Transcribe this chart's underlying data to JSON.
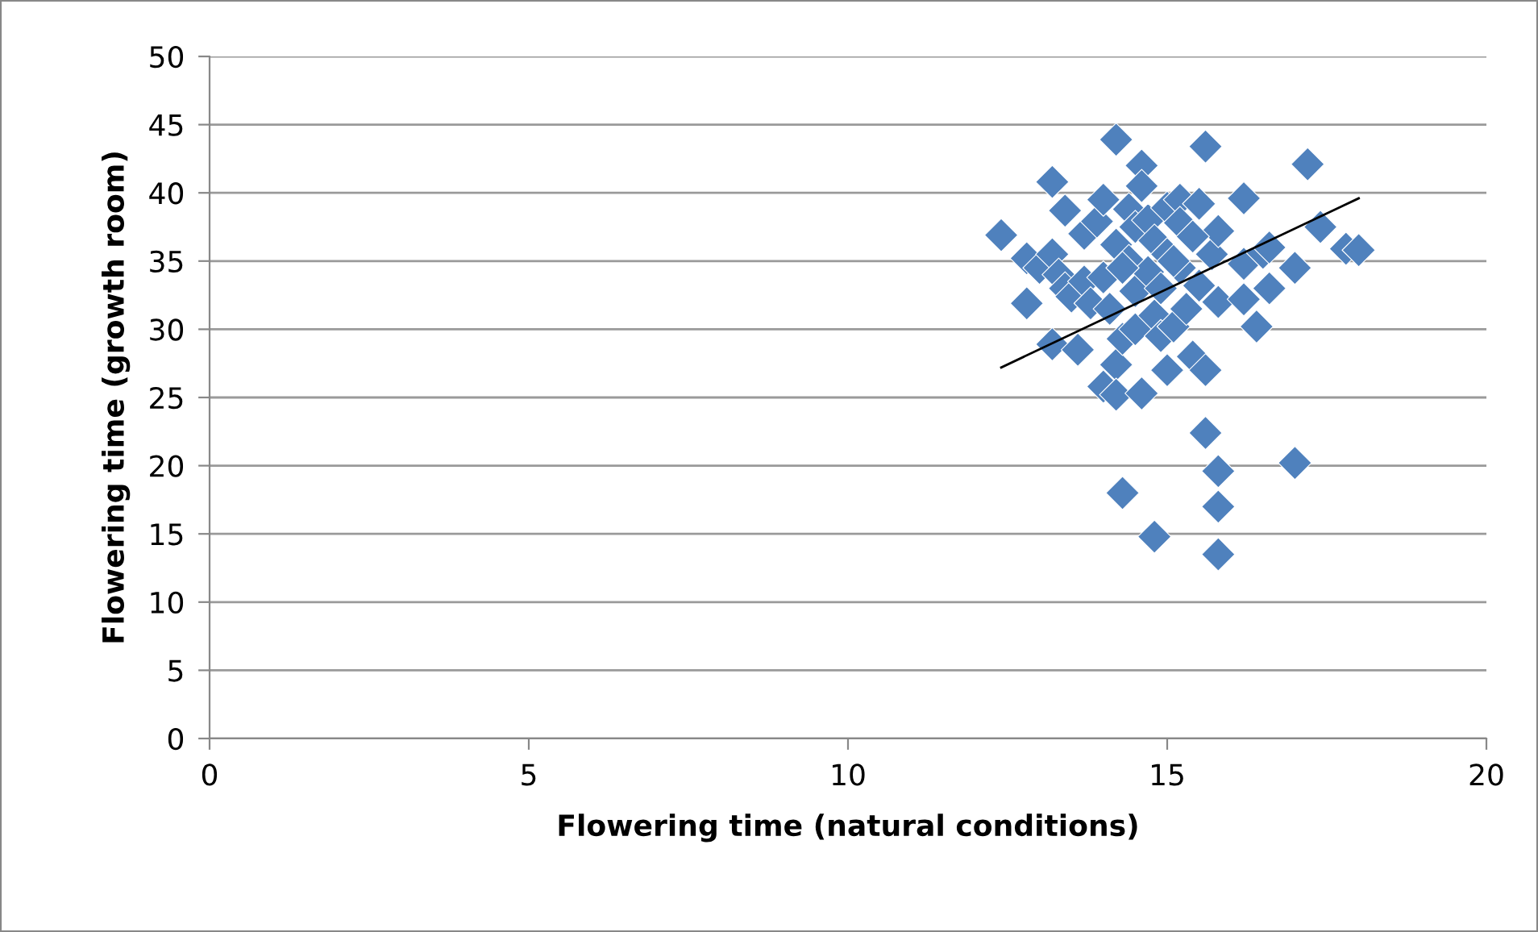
{
  "chart_data": {
    "type": "scatter",
    "xlabel": "Flowering time (natural conditions)",
    "ylabel": "Flowering time (growth room)",
    "xlim": [
      0,
      20
    ],
    "xticks": [
      0,
      5,
      10,
      15,
      20
    ],
    "ylim": [
      0,
      50
    ],
    "yticks": [
      0,
      5,
      10,
      15,
      20,
      25,
      30,
      35,
      40,
      45,
      50
    ],
    "grid": "y",
    "marker": "diamond",
    "series": [
      {
        "color": "#4f81bd",
        "x": [
          12.4,
          12.8,
          12.8,
          13.0,
          13.2,
          13.2,
          13.2,
          13.3,
          13.4,
          13.4,
          13.5,
          13.6,
          13.7,
          13.7,
          13.8,
          13.9,
          14.0,
          14.0,
          14.0,
          14.1,
          14.2,
          14.2,
          14.2,
          14.2,
          14.3,
          14.3,
          14.4,
          14.4,
          14.5,
          14.5,
          14.5,
          14.6,
          14.6,
          14.6,
          14.7,
          14.7,
          14.8,
          14.8,
          14.8,
          14.9,
          15.0,
          15.0,
          15.0,
          15.1,
          15.2,
          15.2,
          15.2,
          15.3,
          15.4,
          15.5,
          15.5,
          15.6,
          15.6,
          15.6,
          15.7,
          15.8,
          15.8,
          15.8,
          15.8,
          15.8,
          16.2,
          16.2,
          16.2,
          16.4,
          16.5,
          16.6,
          16.6,
          17.0,
          17.0,
          17.2,
          17.4,
          17.8,
          18.0,
          14.9,
          15.1,
          14.3,
          15.4
        ],
        "values": [
          36.9,
          35.2,
          31.9,
          34.5,
          40.8,
          35.5,
          28.9,
          34.0,
          38.7,
          33.0,
          32.4,
          28.5,
          37.0,
          33.5,
          31.9,
          37.9,
          39.5,
          33.8,
          25.8,
          31.5,
          43.9,
          36.2,
          27.4,
          25.2,
          29.3,
          18.0,
          38.8,
          35.0,
          37.5,
          32.8,
          30.0,
          42.0,
          40.5,
          25.3,
          38.0,
          34.2,
          36.5,
          31.0,
          14.8,
          29.5,
          38.9,
          35.5,
          27.0,
          30.2,
          39.5,
          37.8,
          34.5,
          31.5,
          28.0,
          39.2,
          33.2,
          43.4,
          27.0,
          22.4,
          35.5,
          37.2,
          32.0,
          19.6,
          17.0,
          13.5,
          39.6,
          34.8,
          32.2,
          30.2,
          35.6,
          33.0,
          36.0,
          34.5,
          20.2,
          42.1,
          37.5,
          35.9,
          35.8,
          33.0,
          35.0,
          34.5,
          36.8
        ]
      },
      {
        "type": "line",
        "color": "#000000",
        "marker": "none",
        "line_style": "solid",
        "x": [
          12.4,
          18.0
        ],
        "values": [
          27.2,
          39.6
        ]
      }
    ]
  }
}
